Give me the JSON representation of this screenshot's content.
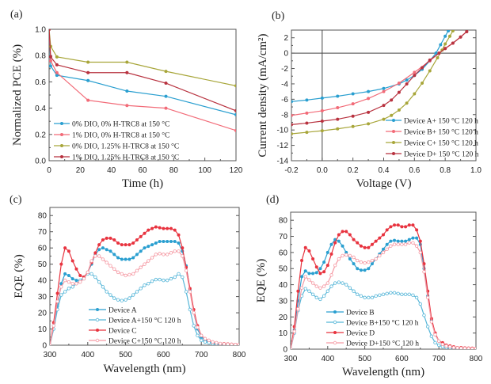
{
  "colors": {
    "blue": "#2a9fd0",
    "pink": "#f26b78",
    "olive": "#a8a63a",
    "darkred": "#b8323f",
    "red": "#e8333f",
    "lightblue": "#56b6d8",
    "lightpink": "#f59aa4"
  },
  "chart_data": [
    {
      "id": "a",
      "panel_label": "(a)",
      "type": "line",
      "xlabel": "Time (h)",
      "ylabel": "Normalized PCE (%)",
      "xlim": [
        0,
        120
      ],
      "ylim": [
        0.0,
        1.0
      ],
      "xticks": [
        "0",
        "20",
        "40",
        "60",
        "80",
        "100",
        "120"
      ],
      "yticks": [
        "0.0",
        "0.2",
        "0.4",
        "0.6",
        "0.8",
        "1.0"
      ],
      "xtick_values": [
        0,
        20,
        40,
        60,
        80,
        100,
        120
      ],
      "ytick_values": [
        0.0,
        0.2,
        0.4,
        0.6,
        0.8,
        1.0
      ],
      "legend_position": "bottom-left",
      "x": [
        0,
        1,
        5,
        25,
        50,
        75,
        120
      ],
      "series": [
        {
          "name": "0% DIO, 0% H-TRC8 at 150 °C",
          "color": "blue",
          "marker": "filled",
          "values": [
            1.0,
            0.72,
            0.65,
            0.61,
            0.53,
            0.49,
            0.35
          ]
        },
        {
          "name": "1% DIO, 0% H-TRC8 at 150 °C",
          "color": "pink",
          "marker": "filled",
          "values": [
            1.0,
            0.76,
            0.67,
            0.46,
            0.42,
            0.4,
            0.23
          ]
        },
        {
          "name": "0% DIO, 1.25% H-TRC8 at 150 °C",
          "color": "olive",
          "marker": "filled",
          "values": [
            1.0,
            0.87,
            0.79,
            0.75,
            0.75,
            0.68,
            0.57
          ]
        },
        {
          "name": "1% DIO, 1.25% H-TRC8 at 150 °C",
          "color": "darkred",
          "marker": "filled",
          "values": [
            1.0,
            0.79,
            0.73,
            0.67,
            0.67,
            0.59,
            0.38
          ]
        }
      ]
    },
    {
      "id": "b",
      "panel_label": "(b)",
      "type": "line",
      "xlabel": "Voltage (V)",
      "ylabel": "Current density (mA/cm²)",
      "xlim": [
        -0.2,
        1.0
      ],
      "ylim": [
        -14,
        3
      ],
      "xticks": [
        "-0.2",
        "0.0",
        "0.2",
        "0.4",
        "0.6",
        "0.8",
        "1.0"
      ],
      "yticks": [
        "-14",
        "-12",
        "-10",
        "-8",
        "-6",
        "-4",
        "-2",
        "0",
        "2"
      ],
      "xtick_values": [
        -0.2,
        0.0,
        0.2,
        0.4,
        0.6,
        0.8,
        1.0
      ],
      "ytick_values": [
        -14,
        -12,
        -10,
        -8,
        -6,
        -4,
        -2,
        0,
        2
      ],
      "legend_position": "bottom-right",
      "series": [
        {
          "name": "Device A+ 150 °C 120 h",
          "color": "blue",
          "marker": "filled",
          "x": [
            -0.2,
            -0.1,
            0.0,
            0.1,
            0.2,
            0.3,
            0.4,
            0.5,
            0.55,
            0.6,
            0.65,
            0.7,
            0.74,
            0.77,
            0.8,
            0.82
          ],
          "values": [
            -6.3,
            -6.1,
            -5.85,
            -5.6,
            -5.3,
            -5.0,
            -4.6,
            -4.0,
            -3.5,
            -2.9,
            -2.1,
            -1.0,
            0.0,
            1.1,
            2.2,
            2.9
          ]
        },
        {
          "name": "Device B+ 150 °C 120 h",
          "color": "pink",
          "marker": "filled",
          "x": [
            -0.2,
            -0.1,
            0.0,
            0.1,
            0.2,
            0.3,
            0.4,
            0.5,
            0.6,
            0.7,
            0.76,
            0.8,
            0.85,
            0.9,
            0.94
          ],
          "values": [
            -8.1,
            -7.8,
            -7.5,
            -7.1,
            -6.6,
            -5.9,
            -5.0,
            -3.9,
            -2.5,
            -1.0,
            0.0,
            0.6,
            1.3,
            2.1,
            2.8
          ]
        },
        {
          "name": "Device C+ 150 °C 120 h",
          "color": "olive",
          "marker": "filled",
          "x": [
            -0.2,
            -0.1,
            0.0,
            0.1,
            0.2,
            0.3,
            0.4,
            0.45,
            0.5,
            0.55,
            0.6,
            0.65,
            0.7,
            0.75,
            0.78,
            0.8,
            0.83,
            0.85
          ],
          "values": [
            -10.5,
            -10.3,
            -10.1,
            -9.85,
            -9.55,
            -9.2,
            -8.6,
            -8.1,
            -7.4,
            -6.5,
            -5.3,
            -3.9,
            -2.3,
            -0.6,
            0.4,
            1.2,
            2.2,
            2.9
          ]
        },
        {
          "name": "Device D+ 150 °C 120 h",
          "color": "darkred",
          "marker": "filled",
          "x": [
            -0.2,
            -0.1,
            0.0,
            0.1,
            0.2,
            0.3,
            0.4,
            0.45,
            0.5,
            0.55,
            0.6,
            0.65,
            0.7,
            0.76,
            0.8,
            0.85,
            0.9,
            0.94
          ],
          "values": [
            -9.3,
            -9.1,
            -8.85,
            -8.6,
            -8.2,
            -7.7,
            -6.8,
            -6.1,
            -5.1,
            -4.0,
            -2.9,
            -1.9,
            -0.9,
            0.0,
            0.6,
            1.3,
            2.1,
            2.8
          ]
        }
      ]
    },
    {
      "id": "c",
      "panel_label": "(c)",
      "type": "line",
      "xlabel": "Wavelength (nm)",
      "ylabel": "EQE (%)",
      "xlim": [
        300,
        800
      ],
      "ylim": [
        0,
        85
      ],
      "xticks": [
        "300",
        "400",
        "500",
        "600",
        "700",
        "800"
      ],
      "yticks": [
        "0",
        "10",
        "20",
        "30",
        "40",
        "50",
        "60",
        "70",
        "80"
      ],
      "xtick_values": [
        300,
        400,
        500,
        600,
        700,
        800
      ],
      "ytick_values": [
        0,
        10,
        20,
        30,
        40,
        50,
        60,
        70,
        80
      ],
      "legend_position": "bottom-center",
      "x": [
        300,
        310,
        320,
        330,
        340,
        350,
        360,
        370,
        380,
        390,
        400,
        410,
        420,
        430,
        440,
        450,
        460,
        470,
        480,
        490,
        500,
        510,
        520,
        530,
        540,
        550,
        560,
        570,
        580,
        590,
        600,
        610,
        620,
        630,
        640,
        650,
        660,
        670,
        680,
        690,
        700,
        710,
        720,
        730,
        740,
        750,
        760,
        770,
        780,
        790,
        800
      ],
      "series": [
        {
          "name": "Device A",
          "color": "blue",
          "marker": "filled",
          "values": [
            0,
            12,
            24,
            38,
            44,
            43,
            41,
            40,
            40,
            41,
            45,
            50,
            56,
            59,
            60,
            59,
            58,
            56,
            54,
            53,
            53,
            53,
            54,
            56,
            58,
            60,
            61,
            62,
            63,
            64,
            64,
            64,
            64,
            64,
            63,
            58,
            49,
            34,
            20,
            10,
            5,
            3,
            2,
            1.5,
            1,
            1,
            0.8,
            0.6,
            0.5,
            0.4,
            0.3
          ]
        },
        {
          "name": "Device A+150 °C 120 h",
          "color": "lightblue",
          "marker": "open",
          "values": [
            0,
            10,
            22,
            31,
            33,
            35,
            36,
            38,
            40,
            42,
            44,
            44,
            42,
            39,
            36,
            33,
            31,
            29,
            28,
            27.5,
            28,
            29,
            31,
            33,
            35,
            37,
            38,
            39.5,
            40.5,
            40.5,
            40,
            40,
            41,
            42,
            44,
            42,
            33,
            22,
            12,
            6,
            3,
            2,
            1.5,
            1,
            0.8,
            0.6,
            0.5,
            0.4,
            0.3,
            0.2,
            0.2
          ]
        },
        {
          "name": "Device C",
          "color": "red",
          "marker": "filled",
          "values": [
            0,
            14,
            32,
            50,
            60,
            58,
            52,
            47,
            43,
            42,
            45,
            51,
            57,
            62,
            65,
            66,
            66,
            65,
            63,
            62,
            62,
            62,
            63,
            65,
            67,
            69,
            71,
            72,
            73,
            72.5,
            72,
            72,
            72,
            71,
            68,
            60,
            48,
            35,
            22,
            12,
            6,
            4,
            3,
            2,
            1.5,
            1,
            1,
            0.8,
            0.6,
            0.5,
            0.4
          ]
        },
        {
          "name": "Device C+150 °C 120 h",
          "color": "lightpink",
          "marker": "open",
          "values": [
            0,
            12,
            27,
            36,
            40,
            39,
            38,
            38,
            39,
            41,
            45,
            52,
            55,
            55,
            53,
            51,
            49,
            47,
            45,
            44,
            43,
            43.5,
            44,
            46,
            48,
            50,
            52,
            54,
            56,
            56.5,
            56,
            56,
            57,
            58,
            58,
            55,
            46,
            33,
            20,
            11,
            6,
            4,
            3,
            2,
            1.5,
            1,
            0.8,
            0.6,
            0.5,
            0.4,
            0.3
          ]
        }
      ]
    },
    {
      "id": "d",
      "panel_label": "(d)",
      "type": "line",
      "xlabel": "Wavelength (nm)",
      "ylabel": "EQE (%)",
      "xlim": [
        300,
        800
      ],
      "ylim": [
        0,
        85
      ],
      "xticks": [
        "300",
        "400",
        "500",
        "600",
        "700",
        "800"
      ],
      "yticks": [
        "0",
        "10",
        "20",
        "30",
        "40",
        "50",
        "60",
        "70",
        "80"
      ],
      "xtick_values": [
        300,
        400,
        500,
        600,
        700,
        800
      ],
      "ytick_values": [
        0,
        10,
        20,
        30,
        40,
        50,
        60,
        70,
        80
      ],
      "legend_position": "bottom-center",
      "x": [
        300,
        310,
        320,
        330,
        340,
        350,
        360,
        370,
        380,
        390,
        400,
        410,
        420,
        430,
        440,
        450,
        460,
        470,
        480,
        490,
        500,
        510,
        520,
        530,
        540,
        550,
        560,
        570,
        580,
        590,
        600,
        610,
        620,
        630,
        640,
        650,
        660,
        670,
        680,
        690,
        700,
        710,
        720,
        730,
        740,
        750,
        760,
        770,
        780,
        790,
        800
      ],
      "series": [
        {
          "name": "Device B",
          "color": "blue",
          "marker": "filled",
          "values": [
            0,
            12,
            30,
            45,
            48.5,
            47,
            47,
            47.5,
            50,
            54,
            60,
            65,
            68,
            67,
            64,
            60,
            56,
            53,
            50,
            49,
            49,
            50,
            53,
            56,
            59,
            62,
            65,
            67,
            67.5,
            67,
            67,
            67,
            68,
            69,
            69,
            65,
            50,
            33,
            18,
            9,
            5,
            3,
            2,
            1.5,
            1,
            0.8,
            0.6,
            0.5,
            0.4,
            0.3,
            0.3
          ]
        },
        {
          "name": "Device B+150 °C 120 h",
          "color": "lightblue",
          "marker": "open",
          "values": [
            0,
            10,
            24,
            33,
            37.5,
            36,
            34,
            32,
            31,
            33,
            36,
            39,
            41,
            41.5,
            41,
            40,
            38,
            36,
            34,
            33,
            32,
            32,
            32,
            33,
            33.5,
            34,
            34.5,
            35,
            35,
            34.5,
            34,
            34,
            34,
            33.5,
            32,
            28,
            21,
            14,
            8,
            4,
            2.5,
            1.5,
            1,
            0.8,
            0.6,
            0.5,
            0.4,
            0.3,
            0.2,
            0.2,
            0.2
          ]
        },
        {
          "name": "Device D",
          "color": "red",
          "marker": "filled",
          "values": [
            0,
            14,
            36,
            55,
            63,
            61,
            56,
            51,
            47,
            48,
            52,
            59,
            66,
            71,
            73,
            73,
            71,
            68,
            66,
            64,
            63,
            63,
            65,
            67,
            69,
            71,
            74,
            76,
            77,
            77,
            76,
            76,
            77,
            77,
            74,
            67,
            53,
            36,
            19,
            10,
            5,
            4,
            2.5,
            2,
            1.5,
            1,
            1,
            0.8,
            0.7,
            0.6,
            0.5
          ]
        },
        {
          "name": "Device D+150 °C 120 h",
          "color": "lightpink",
          "marker": "open",
          "values": [
            0,
            11,
            25,
            38,
            45,
            43,
            41,
            39,
            38,
            39,
            41,
            46,
            52,
            56,
            58,
            58.5,
            58,
            57,
            55,
            54,
            53.5,
            54,
            55,
            56,
            58,
            60,
            62,
            64,
            65,
            65,
            65,
            65,
            66,
            66,
            64,
            60,
            48,
            32,
            17,
            9,
            5,
            3,
            2,
            1.5,
            1,
            0.8,
            0.6,
            0.5,
            0.4,
            0.3,
            0.3
          ]
        }
      ]
    }
  ]
}
